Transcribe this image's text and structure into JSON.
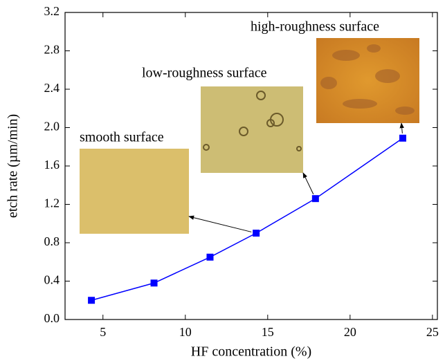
{
  "chart_data": {
    "type": "line",
    "x_label": "HF concentration (%)",
    "y_label": "etch rate (µm/min)",
    "x": [
      4.3,
      8.1,
      11.5,
      14.3,
      17.9,
      23.2
    ],
    "values": [
      0.2,
      0.38,
      0.65,
      0.9,
      1.26,
      1.89
    ],
    "color": "#0000ff",
    "marker": "square",
    "xlim": [
      2.7,
      25.3
    ],
    "ylim": [
      0,
      3.2
    ],
    "xticks": [
      5,
      10,
      15,
      20,
      25
    ],
    "yticks": [
      {
        "value": 0,
        "label": "0.0"
      },
      0.4,
      0.8,
      1.2,
      1.6,
      {
        "value": 2,
        "label": "2.0"
      },
      2.4,
      2.8,
      3.2
    ],
    "annotations": [
      {
        "text": "smooth surface",
        "point": 3
      },
      {
        "text": "low-roughness surface",
        "point": 4
      },
      {
        "text": "high-roughness surface",
        "point": 5
      }
    ]
  }
}
